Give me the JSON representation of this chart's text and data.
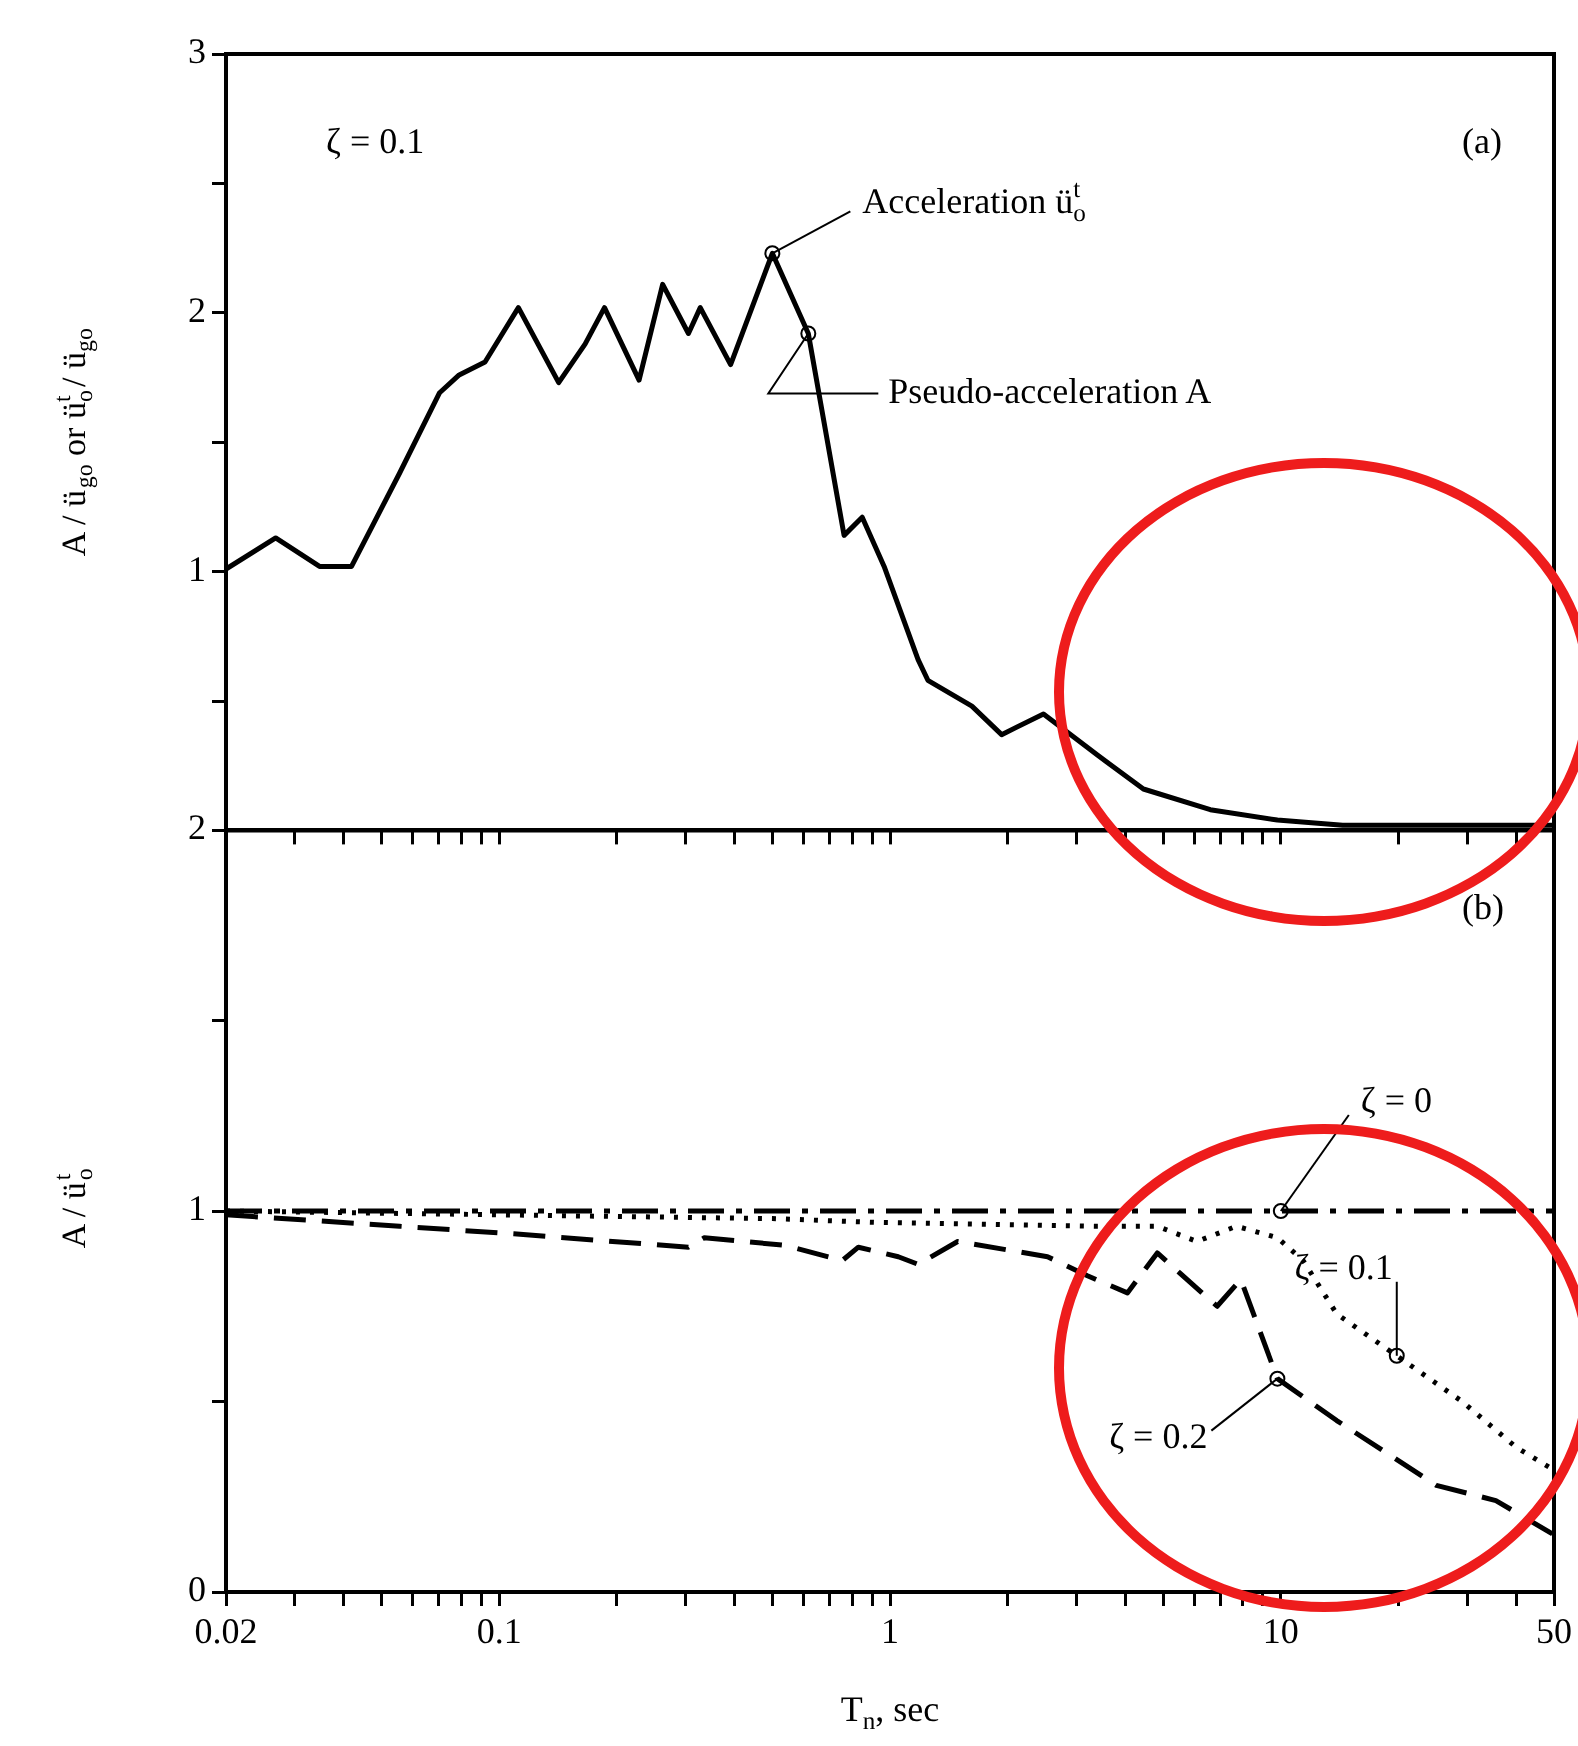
{
  "chart_data": [
    {
      "type": "line",
      "ylabel": "A / ü$_{go}$ or ü$_{o}$$^{t}$ / ü$_{go}$",
      "log": "x",
      "xlim": [
        0.02,
        50
      ],
      "ylim": [
        0,
        3
      ],
      "xticks": [
        {
          "value": 0.02,
          "label": null
        },
        {
          "value": 0.03,
          "label": null
        },
        {
          "value": 0.04,
          "label": null
        },
        {
          "value": 0.05,
          "label": null
        },
        {
          "value": 0.06,
          "label": null
        },
        {
          "value": 0.07,
          "label": null
        },
        {
          "value": 0.08,
          "label": null
        },
        {
          "value": 0.09,
          "label": null
        },
        {
          "value": 0.1,
          "label": null
        },
        {
          "value": 0.2,
          "label": null
        },
        {
          "value": 0.3,
          "label": null
        },
        {
          "value": 0.4,
          "label": null
        },
        {
          "value": 0.5,
          "label": null
        },
        {
          "value": 0.6,
          "label": null
        },
        {
          "value": 0.7,
          "label": null
        },
        {
          "value": 0.8,
          "label": null
        },
        {
          "value": 0.9,
          "label": null
        },
        {
          "value": 1,
          "label": null
        },
        {
          "value": 2,
          "label": null
        },
        {
          "value": 3,
          "label": null
        },
        {
          "value": 4,
          "label": null
        },
        {
          "value": 5,
          "label": null
        },
        {
          "value": 6,
          "label": null
        },
        {
          "value": 7,
          "label": null
        },
        {
          "value": 8,
          "label": null
        },
        {
          "value": 9,
          "label": null
        },
        {
          "value": 10,
          "label": null
        },
        {
          "value": 20,
          "label": null
        },
        {
          "value": 30,
          "label": null
        },
        {
          "value": 40,
          "label": null
        },
        {
          "value": 50,
          "label": null
        }
      ],
      "yticks": [
        {
          "value": 0,
          "label": null
        },
        {
          "value": 0.5,
          "label": null
        },
        1,
        {
          "value": 1.5,
          "label": null
        },
        2,
        {
          "value": 2.5,
          "label": null
        },
        3
      ],
      "tick_labels": "y",
      "marker": "none",
      "series": [
        {
          "color": "#000000",
          "line_style": "solid",
          "x": [
            0.02,
            0.0268,
            0.0347,
            0.0419,
            0.0556,
            0.0703,
            0.079,
            0.092,
            0.112,
            0.142,
            0.166,
            0.186,
            0.228,
            0.262,
            0.305,
            0.327,
            0.391,
            0.5,
            0.618,
            0.763,
            0.849,
            0.966,
            1.18,
            1.25,
            1.62,
            1.93,
            2.47,
            3.4,
            4.45,
            6.6,
            9.8,
            14.4,
            50
          ],
          "values": [
            1.01,
            1.13,
            1.02,
            1.02,
            1.38,
            1.69,
            1.76,
            1.81,
            2.02,
            1.73,
            1.88,
            2.02,
            1.74,
            2.11,
            1.92,
            2.02,
            1.8,
            2.23,
            1.92,
            1.14,
            1.21,
            1.02,
            0.66,
            0.58,
            0.48,
            0.37,
            0.45,
            0.29,
            0.16,
            0.08,
            0.04,
            0.02,
            0.02
          ]
        }
      ],
      "annotations": [
        "ζ = 0.1",
        "(a)",
        {
          "text": "Acceleration ü$_{o}$$^{t}$",
          "x": 0.5,
          "y": 2.23
        },
        {
          "text": "Pseudo-acceleration A",
          "x": 0.618,
          "y": 1.92
        }
      ]
    },
    {
      "type": "line",
      "xlabel": "T$_{n}$, sec",
      "ylabel": "A / ü$_{o}$$^{t}$",
      "log": "x",
      "xlim": [
        0.02,
        50
      ],
      "ylim": [
        0,
        2
      ],
      "xticks": [
        0.02,
        {
          "value": 0.03,
          "label": null
        },
        {
          "value": 0.04,
          "label": null
        },
        {
          "value": 0.05,
          "label": null
        },
        {
          "value": 0.06,
          "label": null
        },
        {
          "value": 0.07,
          "label": null
        },
        {
          "value": 0.08,
          "label": null
        },
        {
          "value": 0.09,
          "label": null
        },
        0.1,
        {
          "value": 0.2,
          "label": null
        },
        {
          "value": 0.3,
          "label": null
        },
        {
          "value": 0.4,
          "label": null
        },
        {
          "value": 0.5,
          "label": null
        },
        {
          "value": 0.6,
          "label": null
        },
        {
          "value": 0.7,
          "label": null
        },
        {
          "value": 0.8,
          "label": null
        },
        {
          "value": 0.9,
          "label": null
        },
        1,
        {
          "value": 2,
          "label": null
        },
        {
          "value": 3,
          "label": null
        },
        {
          "value": 4,
          "label": null
        },
        {
          "value": 5,
          "label": null
        },
        {
          "value": 6,
          "label": null
        },
        {
          "value": 7,
          "label": null
        },
        {
          "value": 8,
          "label": null
        },
        {
          "value": 9,
          "label": null
        },
        10,
        {
          "value": 20,
          "label": null
        },
        {
          "value": 30,
          "label": null
        },
        {
          "value": 40,
          "label": null
        },
        50
      ],
      "yticks": [
        0,
        {
          "value": 0.5,
          "label": null
        },
        1,
        {
          "value": 1.5,
          "label": null
        },
        2
      ],
      "marker": "none",
      "series": [
        {
          "name": "ζ = 0",
          "color": "#000000",
          "line_style": "dashdot",
          "x": [
            0.02,
            10,
            50
          ],
          "values": [
            1,
            1,
            1
          ]
        },
        {
          "name": "ζ = 0.1",
          "color": "#000000",
          "line_style": "dotted",
          "x": [
            0.02,
            0.1,
            0.5,
            0.93,
            3.4,
            4.83,
            6.1,
            7.7,
            9.8,
            11.4,
            13.9,
            19.8,
            29.1,
            40,
            50
          ],
          "values": [
            1,
            0.99,
            0.98,
            0.97,
            0.96,
            0.96,
            0.92,
            0.96,
            0.93,
            0.87,
            0.73,
            0.62,
            0.5,
            0.38,
            0.32
          ]
        },
        {
          "name": "ζ = 0.2",
          "color": "#000000",
          "line_style": "dashed",
          "x": [
            0.02,
            0.0556,
            0.109,
            0.305,
            0.335,
            0.537,
            0.755,
            0.83,
            1.05,
            1.18,
            1.49,
            2.53,
            3.2,
            4.05,
            4.83,
            6.87,
            7.9,
            9.8,
            13.9,
            25,
            35.5,
            50
          ],
          "values": [
            0.99,
            0.96,
            0.94,
            0.905,
            0.93,
            0.91,
            0.87,
            0.905,
            0.88,
            0.86,
            0.92,
            0.88,
            0.83,
            0.785,
            0.89,
            0.75,
            0.82,
            0.56,
            0.45,
            0.28,
            0.24,
            0.15
          ]
        }
      ],
      "annotations": [
        "(b)"
      ]
    }
  ]
}
